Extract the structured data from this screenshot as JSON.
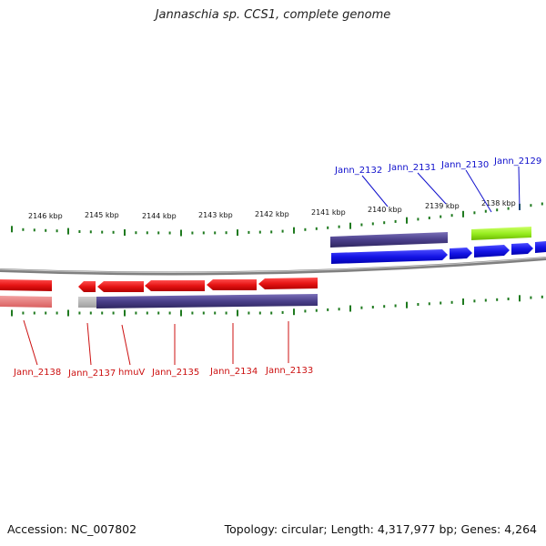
{
  "title": "Jannaschia sp. CCS1, complete genome",
  "footer": {
    "accession": "Accession: NC_007802",
    "summary": "Topology: circular; Length: 4,317,977 bp; Genes: 4,264"
  },
  "scale_labels": [
    "2146 kbp",
    "2145 kbp",
    "2144 kbp",
    "2143 kbp",
    "2142 kbp",
    "2141 kbp",
    "2140 kbp",
    "2139 kbp",
    "2138 kbp"
  ],
  "top_genes": [
    "Jann_2132",
    "Jann_2131",
    "Jann_2130",
    "Jann_2129"
  ],
  "bottom_genes": [
    "Jann_2138",
    "Jann_2137",
    "hmuV",
    "Jann_2135",
    "Jann_2134",
    "Jann_2133"
  ],
  "colors": {
    "forward_strand": "#1414e6",
    "reverse_strand": "#e61414",
    "forward_label": "#1010cc",
    "reverse_label": "#cc1010",
    "tick": "#1f7a1f",
    "band": "#4a3f8a",
    "highlight": "#99ee22",
    "backbone": "#808080"
  }
}
